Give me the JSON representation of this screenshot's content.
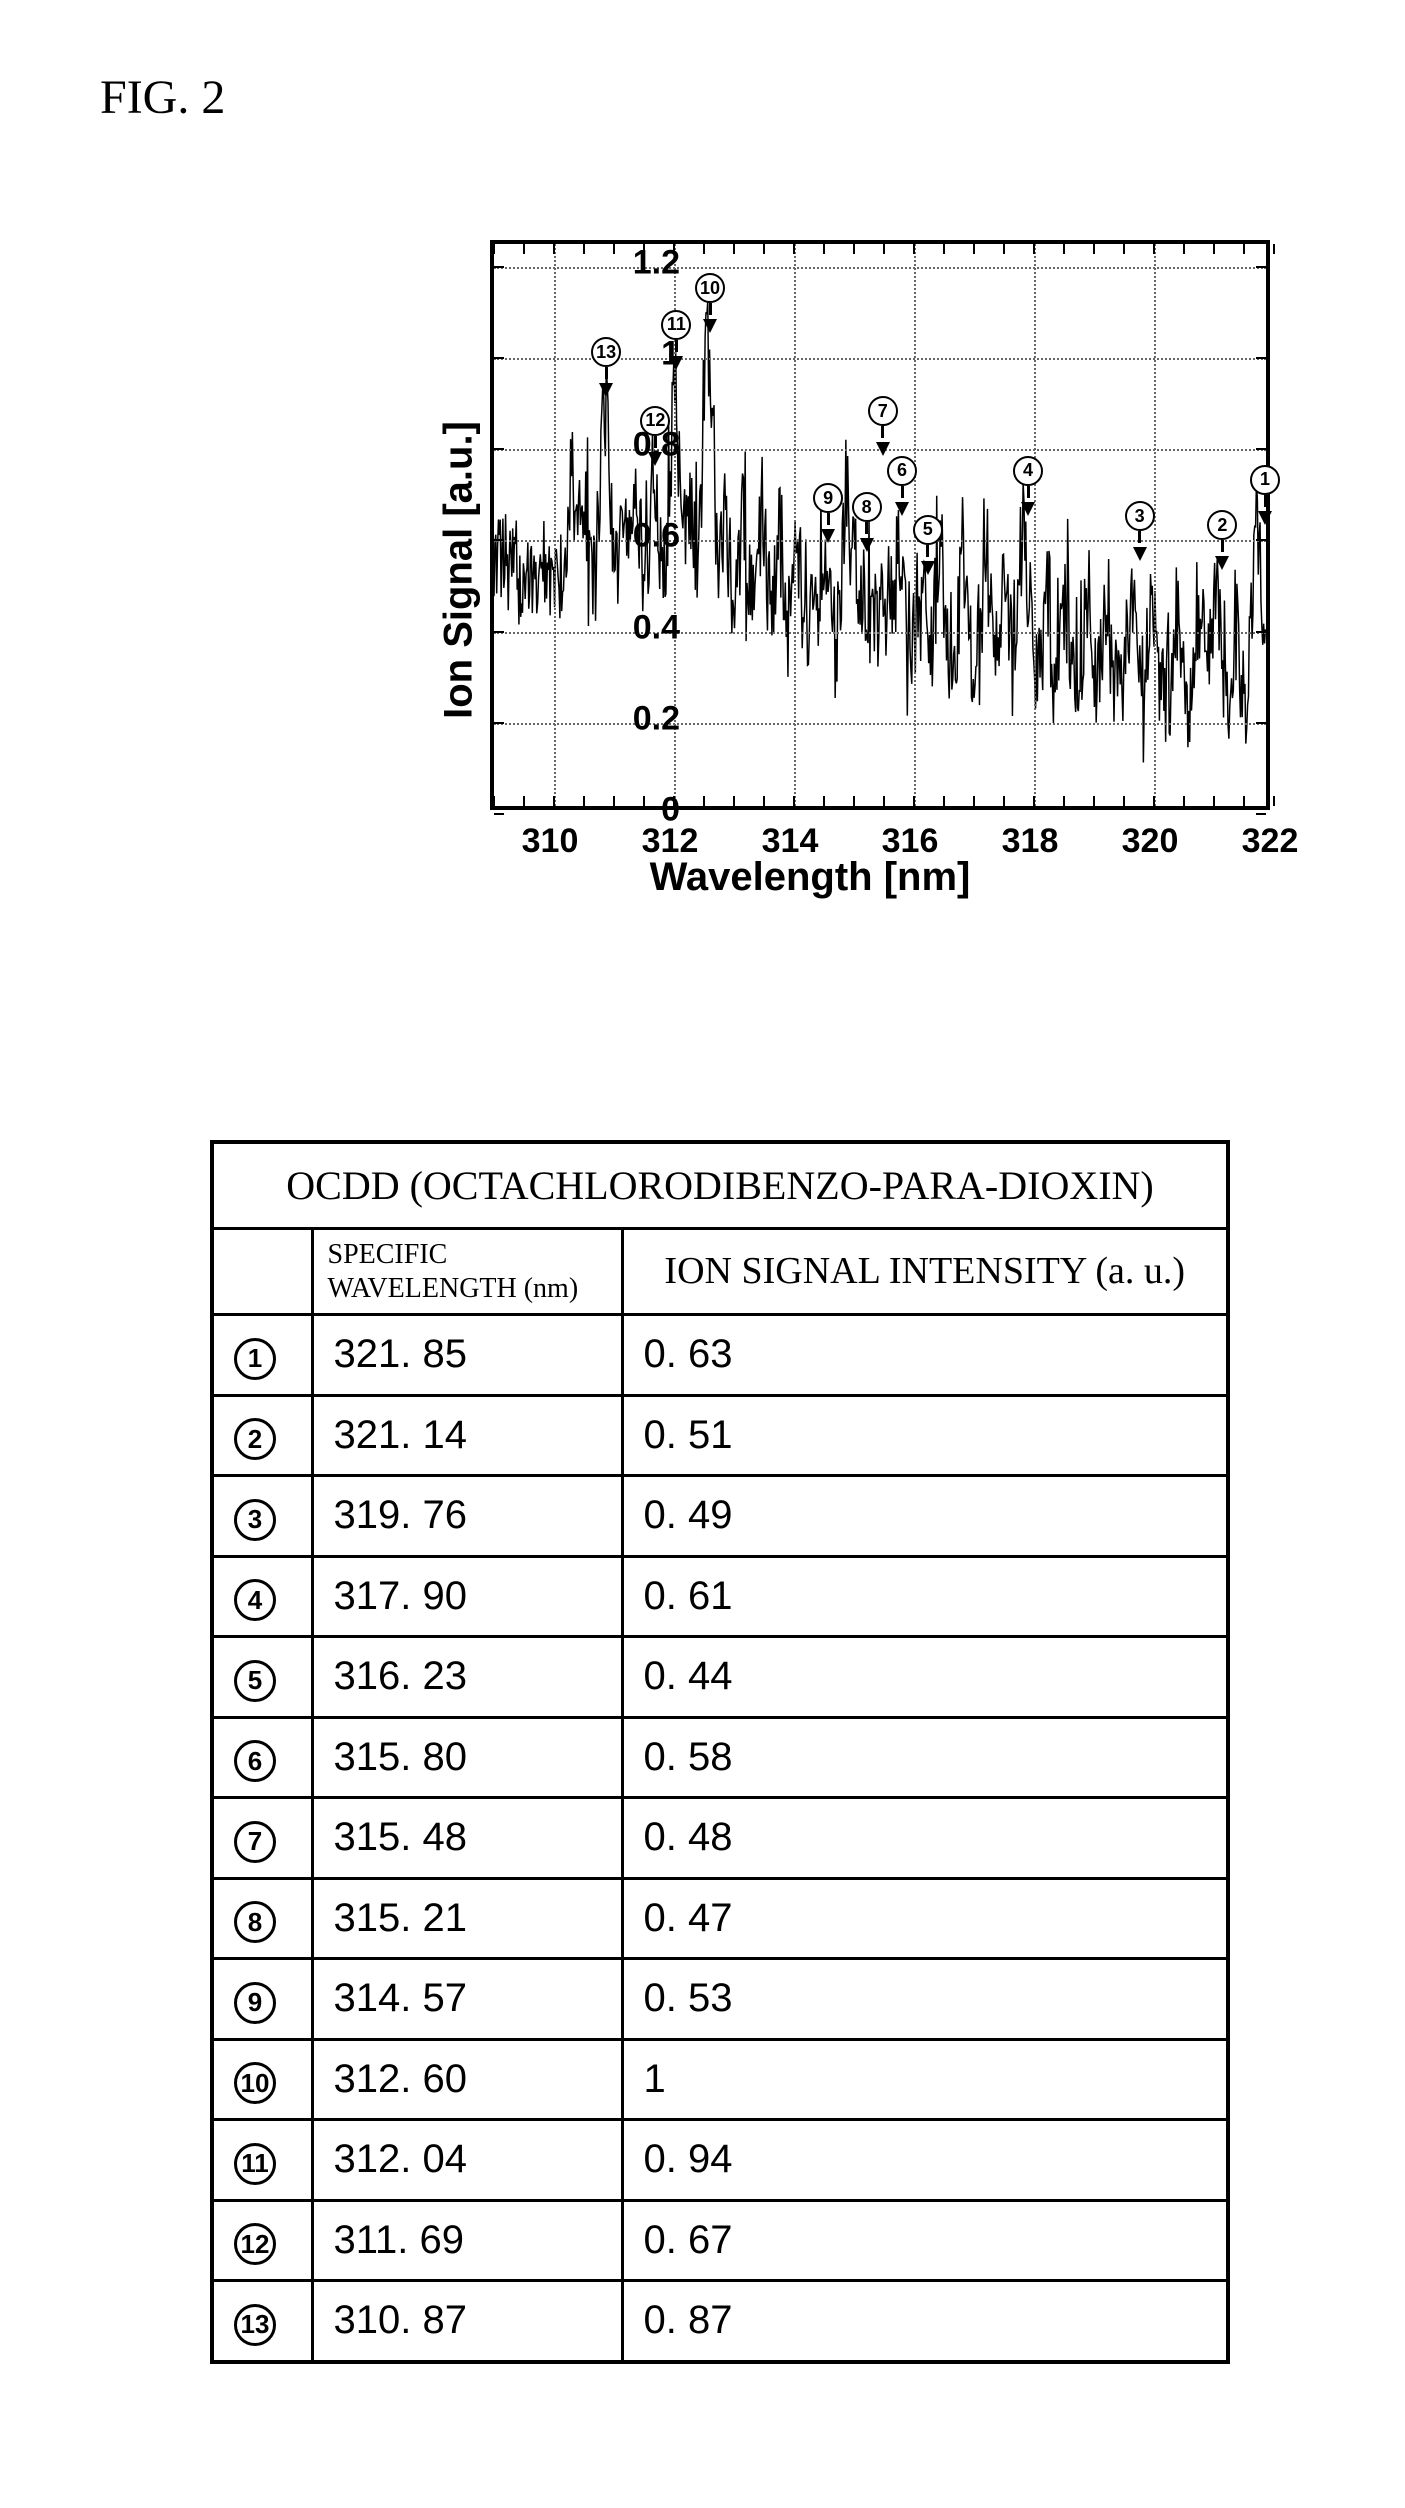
{
  "figure_label": "FIG. 2",
  "chart": {
    "type": "line",
    "ylabel": "Ion Signal [a.u.]",
    "xlabel": "Wavelength [nm]",
    "title_fontsize": 40,
    "label_fontsize": 40,
    "tick_fontsize": 34,
    "xlim": [
      309,
      322
    ],
    "ylim": [
      0,
      1.25
    ],
    "xtick_values": [
      310,
      312,
      314,
      316,
      318,
      320,
      322
    ],
    "ytick_values": [
      0,
      0.2,
      0.4,
      0.6,
      0.8,
      1,
      1.2
    ],
    "ytick_labels": [
      "0",
      "0.2",
      "0.4",
      "0.6",
      "0.8",
      "1",
      "1.2"
    ],
    "xtick_labels": [
      "310",
      "312",
      "314",
      "316",
      "318",
      "320",
      "322"
    ],
    "minor_tick_step_x": 0.5,
    "background_color": "#ffffff",
    "grid_color": "#666666",
    "grid_style": "dotted",
    "line_color": "#000000",
    "line_width": 1.5,
    "peak_markers": [
      {
        "id": 1,
        "wavelength": 321.85,
        "intensity": 0.63,
        "label_y": 0.7
      },
      {
        "id": 2,
        "wavelength": 321.14,
        "intensity": 0.51,
        "label_y": 0.6
      },
      {
        "id": 3,
        "wavelength": 319.76,
        "intensity": 0.49,
        "label_y": 0.62
      },
      {
        "id": 4,
        "wavelength": 317.9,
        "intensity": 0.61,
        "label_y": 0.72
      },
      {
        "id": 5,
        "wavelength": 316.23,
        "intensity": 0.44,
        "label_y": 0.59
      },
      {
        "id": 6,
        "wavelength": 315.8,
        "intensity": 0.58,
        "label_y": 0.72
      },
      {
        "id": 7,
        "wavelength": 315.48,
        "intensity": 0.48,
        "label_y": 0.85
      },
      {
        "id": 8,
        "wavelength": 315.21,
        "intensity": 0.47,
        "label_y": 0.64
      },
      {
        "id": 9,
        "wavelength": 314.57,
        "intensity": 0.53,
        "label_y": 0.66
      },
      {
        "id": 10,
        "wavelength": 312.6,
        "intensity": 1.0,
        "label_y": 1.12
      },
      {
        "id": 11,
        "wavelength": 312.04,
        "intensity": 0.94,
        "label_y": 1.04
      },
      {
        "id": 12,
        "wavelength": 311.69,
        "intensity": 0.67,
        "label_y": 0.83
      },
      {
        "id": 13,
        "wavelength": 310.87,
        "intensity": 0.87,
        "label_y": 0.98
      }
    ]
  },
  "table": {
    "title": "OCDD (OCTACHLORODIBENZO-PARA-DIOXIN)",
    "columns": {
      "wavelength_header": "SPECIFIC WAVELENGTH (nm)",
      "signal_header": "ION SIGNAL INTENSITY (a. u.)"
    },
    "rows": [
      {
        "idx": 1,
        "wavelength": "321. 85",
        "signal": "0. 63"
      },
      {
        "idx": 2,
        "wavelength": "321. 14",
        "signal": "0. 51"
      },
      {
        "idx": 3,
        "wavelength": "319. 76",
        "signal": "0. 49"
      },
      {
        "idx": 4,
        "wavelength": "317. 90",
        "signal": "0. 61"
      },
      {
        "idx": 5,
        "wavelength": "316. 23",
        "signal": "0. 44"
      },
      {
        "idx": 6,
        "wavelength": "315. 80",
        "signal": "0. 58"
      },
      {
        "idx": 7,
        "wavelength": "315. 48",
        "signal": "0. 48"
      },
      {
        "idx": 8,
        "wavelength": "315. 21",
        "signal": "0. 47"
      },
      {
        "idx": 9,
        "wavelength": "314. 57",
        "signal": "0. 53"
      },
      {
        "idx": 10,
        "wavelength": "312. 60",
        "signal": "1"
      },
      {
        "idx": 11,
        "wavelength": "312. 04",
        "signal": "0. 94"
      },
      {
        "idx": 12,
        "wavelength": "311. 69",
        "signal": "0. 67"
      },
      {
        "idx": 13,
        "wavelength": "310. 87",
        "signal": "0. 87"
      }
    ]
  }
}
